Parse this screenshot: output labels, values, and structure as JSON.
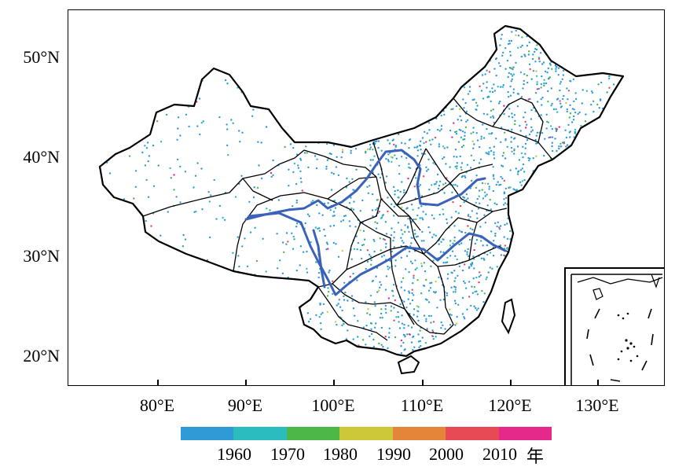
{
  "map": {
    "y_axis_labels": [
      "50°N",
      "40°N",
      "30°N",
      "20°N"
    ],
    "x_axis_labels": [
      "80°E",
      "90°E",
      "100°E",
      "110°E",
      "120°E",
      "130°E"
    ]
  },
  "legend": {
    "colors": [
      "#2e9ad6",
      "#2bbcbf",
      "#4db848",
      "#cdc83a",
      "#e4853a",
      "#e84a55",
      "#e5298a"
    ],
    "labels": [
      "1960",
      "1970",
      "1980",
      "1990",
      "2000",
      "2010"
    ],
    "unit": "年"
  },
  "colors": {
    "border": "#000000",
    "river": "#3a62b8",
    "station_default": "#2e9ad6"
  }
}
